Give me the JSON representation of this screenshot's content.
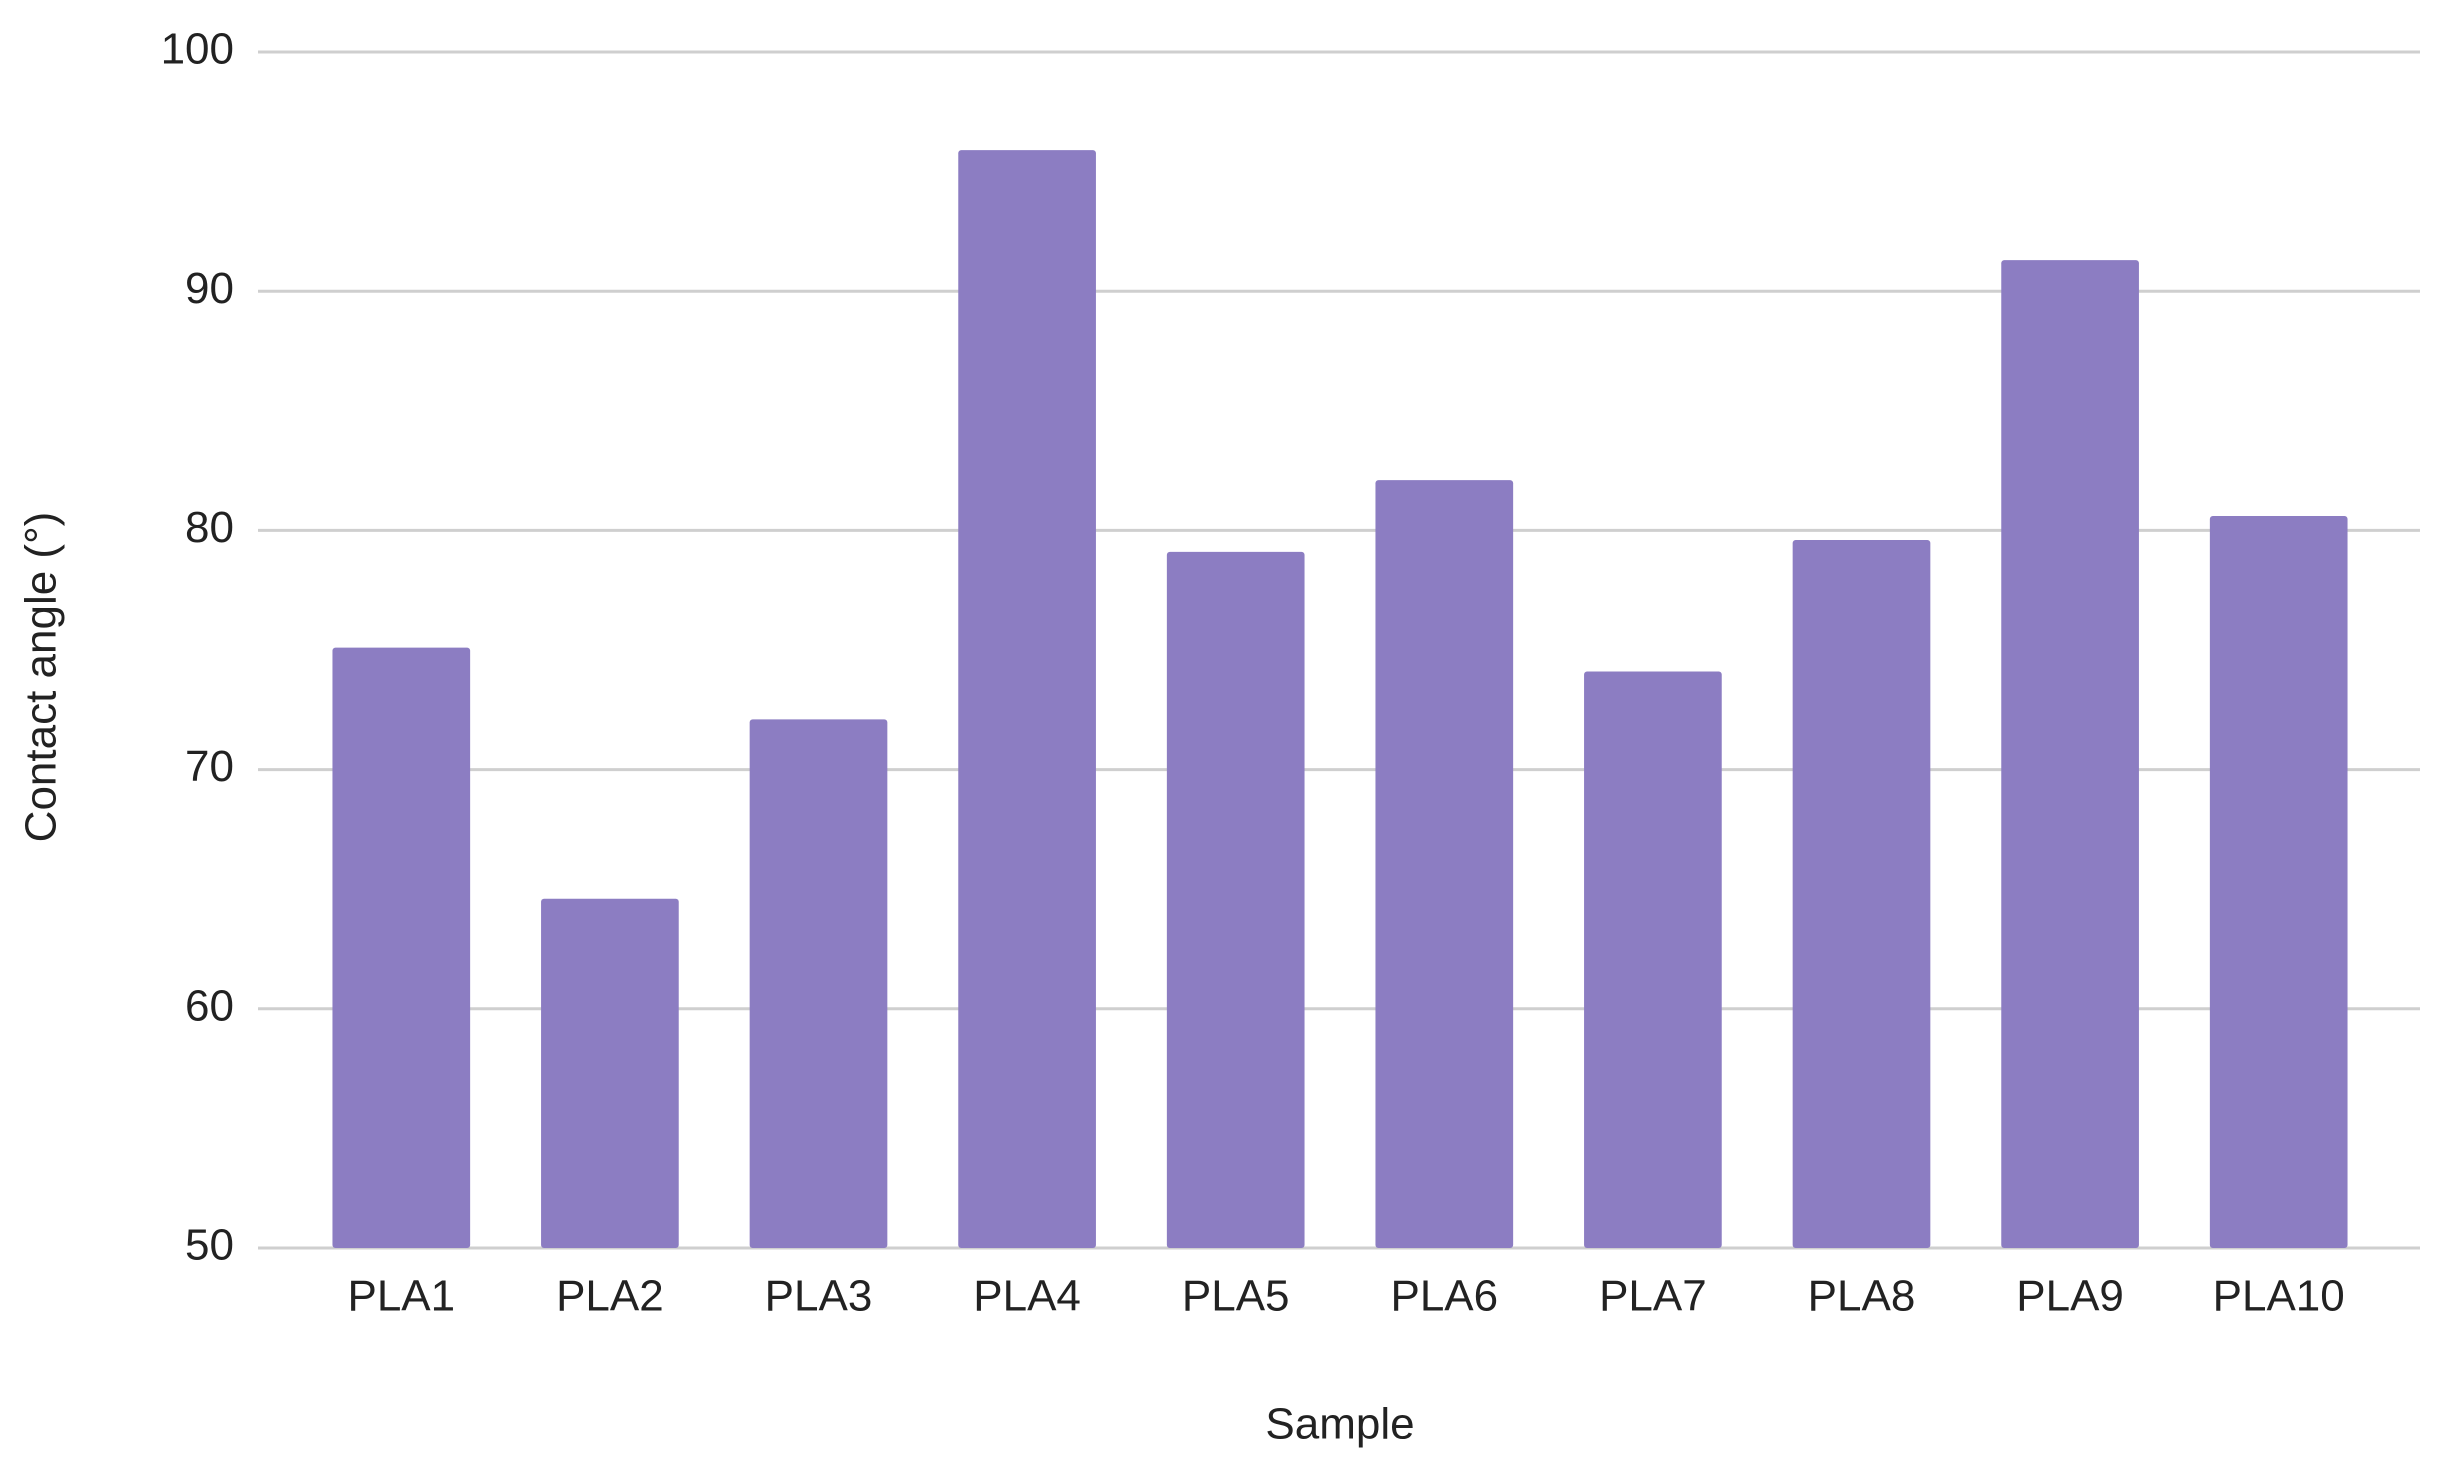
{
  "chart_data": {
    "type": "bar",
    "x_label": "Sample",
    "y_label": "Contact angle (°)",
    "categories": [
      "PLA1",
      "PLA2",
      "PLA3",
      "PLA4",
      "PLA5",
      "PLA6",
      "PLA7",
      "PLA8",
      "PLA9",
      "PLA10"
    ],
    "values": [
      75.1,
      64.6,
      72.1,
      95.9,
      79.1,
      82.1,
      74.1,
      79.6,
      91.3,
      80.6
    ],
    "color": "#8c7dc2",
    "ylim": [
      50,
      100
    ],
    "yticks": [
      50,
      60,
      70,
      80,
      90,
      100
    ],
    "grid": true
  }
}
